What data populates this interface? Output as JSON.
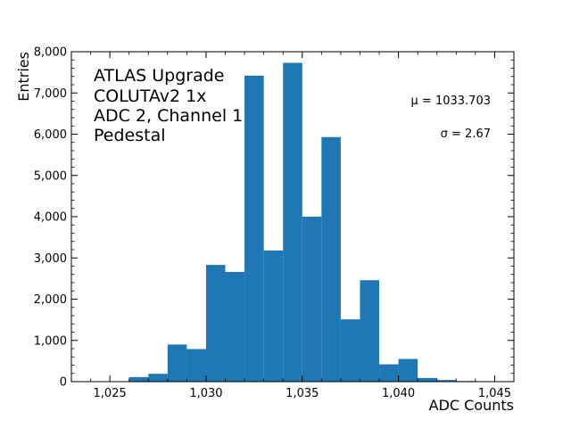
{
  "chart_data": {
    "type": "bar",
    "bar_color": "#1f77b4",
    "xlabel": "ADC Counts",
    "ylabel": "Entries",
    "xlim": [
      1023,
      1046
    ],
    "ylim": [
      0,
      8000
    ],
    "x_ticks": [
      1025,
      1030,
      1035,
      1040,
      1045
    ],
    "x_tick_labels": [
      "1,025",
      "1,030",
      "1,035",
      "1,040",
      "1,045"
    ],
    "y_ticks": [
      0,
      1000,
      2000,
      3000,
      4000,
      5000,
      6000,
      7000,
      8000
    ],
    "y_tick_labels": [
      "0",
      "1,000",
      "2,000",
      "3,000",
      "4,000",
      "5,000",
      "6,000",
      "7,000",
      "8,000"
    ],
    "bins": [
      {
        "x0": 1026.0,
        "x1": 1027.0,
        "value": 110
      },
      {
        "x0": 1027.0,
        "x1": 1028.0,
        "value": 190
      },
      {
        "x0": 1028.0,
        "x1": 1029.0,
        "value": 900
      },
      {
        "x0": 1029.0,
        "x1": 1030.0,
        "value": 790
      },
      {
        "x0": 1030.0,
        "x1": 1031.0,
        "value": 2830
      },
      {
        "x0": 1031.0,
        "x1": 1032.0,
        "value": 2660
      },
      {
        "x0": 1032.0,
        "x1": 1033.0,
        "value": 7420
      },
      {
        "x0": 1033.0,
        "x1": 1034.0,
        "value": 3180
      },
      {
        "x0": 1034.0,
        "x1": 1035.0,
        "value": 7730
      },
      {
        "x0": 1035.0,
        "x1": 1036.0,
        "value": 4000
      },
      {
        "x0": 1036.0,
        "x1": 1037.0,
        "value": 5930
      },
      {
        "x0": 1037.0,
        "x1": 1038.0,
        "value": 1510
      },
      {
        "x0": 1038.0,
        "x1": 1039.0,
        "value": 2460
      },
      {
        "x0": 1039.0,
        "x1": 1040.0,
        "value": 420
      },
      {
        "x0": 1040.0,
        "x1": 1041.0,
        "value": 550
      },
      {
        "x0": 1041.0,
        "x1": 1042.0,
        "value": 90
      },
      {
        "x0": 1042.0,
        "x1": 1043.0,
        "value": 40
      },
      {
        "x0": 1043.0,
        "x1": 1044.0,
        "value": 15
      }
    ],
    "annotation_lines": [
      "ATLAS Upgrade",
      "COLUTAv2 1x",
      "ADC 2, Channel 1",
      "Pedestal"
    ],
    "mean_label": "μ = 1033.703",
    "sigma_label": "σ = 2.67"
  }
}
